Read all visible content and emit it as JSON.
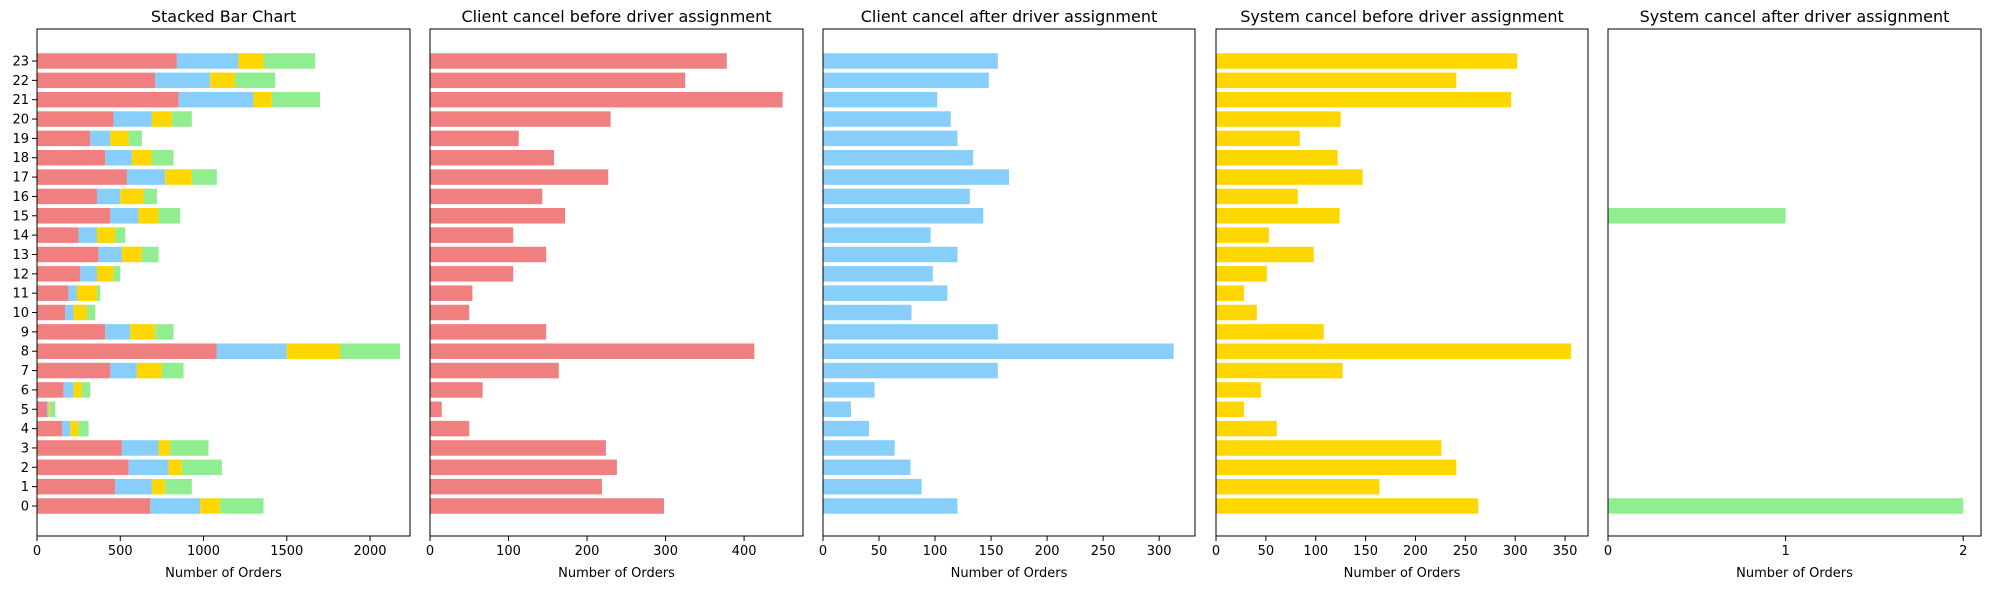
{
  "figure": {
    "colors": {
      "client_before": "#F08080",
      "client_after": "#87CEFA",
      "system_before": "#FFD700",
      "system_after": "#90EE90"
    }
  },
  "chart_data": [
    {
      "type": "bar",
      "orientation": "horizontal",
      "stacked": true,
      "title": "Stacked Bar Chart",
      "xlabel": "Number of Orders",
      "ylabel": "",
      "xlim": [
        0,
        2240
      ],
      "xticks": [
        0,
        500,
        1000,
        1500,
        2000
      ],
      "categories": [
        0,
        1,
        2,
        3,
        4,
        5,
        6,
        7,
        8,
        9,
        10,
        11,
        12,
        13,
        14,
        15,
        16,
        17,
        18,
        19,
        20,
        21,
        22,
        23
      ],
      "series": [
        {
          "color": "#F08080",
          "values": [
            680,
            470,
            550,
            510,
            150,
            60,
            160,
            440,
            1080,
            410,
            170,
            190,
            260,
            370,
            250,
            440,
            360,
            540,
            410,
            320,
            460,
            850,
            710,
            840
          ]
        },
        {
          "color": "#87CEFA",
          "values": [
            300,
            220,
            240,
            220,
            50,
            10,
            60,
            160,
            420,
            150,
            50,
            50,
            100,
            140,
            110,
            170,
            140,
            230,
            160,
            120,
            230,
            450,
            330,
            370
          ]
        },
        {
          "color": "#FFD700",
          "values": [
            120,
            80,
            80,
            70,
            50,
            10,
            50,
            150,
            320,
            150,
            80,
            120,
            100,
            120,
            110,
            120,
            140,
            160,
            120,
            110,
            120,
            110,
            150,
            150
          ]
        },
        {
          "color": "#90EE90",
          "values": [
            260,
            160,
            240,
            230,
            60,
            30,
            50,
            130,
            360,
            110,
            50,
            20,
            40,
            100,
            60,
            130,
            80,
            150,
            130,
            80,
            120,
            290,
            240,
            310
          ]
        }
      ]
    },
    {
      "type": "bar",
      "orientation": "horizontal",
      "title": "Client cancel before driver assignment",
      "xlabel": "Number of Orders",
      "ylabel": "",
      "xlim": [
        0,
        475
      ],
      "xticks": [
        0,
        100,
        200,
        300,
        400
      ],
      "categories": [
        0,
        1,
        2,
        3,
        4,
        5,
        6,
        7,
        8,
        9,
        10,
        11,
        12,
        13,
        14,
        15,
        16,
        17,
        18,
        19,
        20,
        21,
        22,
        23
      ],
      "series": [
        {
          "color": "#F08080",
          "values": [
            298,
            219,
            238,
            224,
            50,
            15,
            67,
            164,
            413,
            148,
            50,
            54,
            106,
            148,
            106,
            172,
            143,
            227,
            158,
            113,
            230,
            449,
            325,
            378
          ]
        }
      ]
    },
    {
      "type": "bar",
      "orientation": "horizontal",
      "title": "Client cancel after driver assignment",
      "xlabel": "Number of Orders",
      "ylabel": "",
      "xlim": [
        0,
        332
      ],
      "xticks": [
        0,
        50,
        100,
        150,
        200,
        250,
        300
      ],
      "categories": [
        0,
        1,
        2,
        3,
        4,
        5,
        6,
        7,
        8,
        9,
        10,
        11,
        12,
        13,
        14,
        15,
        16,
        17,
        18,
        19,
        20,
        21,
        22,
        23
      ],
      "series": [
        {
          "color": "#87CEFA",
          "values": [
            120,
            88,
            78,
            64,
            41,
            25,
            46,
            156,
            313,
            156,
            79,
            111,
            98,
            120,
            96,
            143,
            131,
            166,
            134,
            120,
            114,
            102,
            148,
            156
          ]
        }
      ]
    },
    {
      "type": "bar",
      "orientation": "horizontal",
      "title": "System cancel before driver assignment",
      "xlabel": "Number of Orders",
      "ylabel": "",
      "xlim": [
        0,
        373
      ],
      "xticks": [
        0,
        50,
        100,
        150,
        200,
        250,
        300,
        350
      ],
      "categories": [
        0,
        1,
        2,
        3,
        4,
        5,
        6,
        7,
        8,
        9,
        10,
        11,
        12,
        13,
        14,
        15,
        16,
        17,
        18,
        19,
        20,
        21,
        22,
        23
      ],
      "series": [
        {
          "color": "#FFD700",
          "values": [
            263,
            164,
            241,
            226,
            61,
            28,
            45,
            127,
            356,
            108,
            41,
            28,
            51,
            98,
            53,
            124,
            82,
            147,
            122,
            84,
            125,
            296,
            241,
            302
          ]
        }
      ]
    },
    {
      "type": "bar",
      "orientation": "horizontal",
      "title": "System cancel after driver assignment",
      "xlabel": "Number of Orders",
      "ylabel": "",
      "xlim": [
        0,
        2.1
      ],
      "xticks": [
        0,
        1,
        2
      ],
      "categories": [
        0,
        1,
        2,
        3,
        4,
        5,
        6,
        7,
        8,
        9,
        10,
        11,
        12,
        13,
        14,
        15,
        16,
        17,
        18,
        19,
        20,
        21,
        22,
        23
      ],
      "series": [
        {
          "color": "#90EE90",
          "values": [
            2,
            0,
            0,
            0,
            0,
            0,
            0,
            0,
            0,
            0,
            0,
            0,
            0,
            0,
            0,
            1,
            0,
            0,
            0,
            0,
            0,
            0,
            0,
            0
          ]
        }
      ]
    }
  ]
}
